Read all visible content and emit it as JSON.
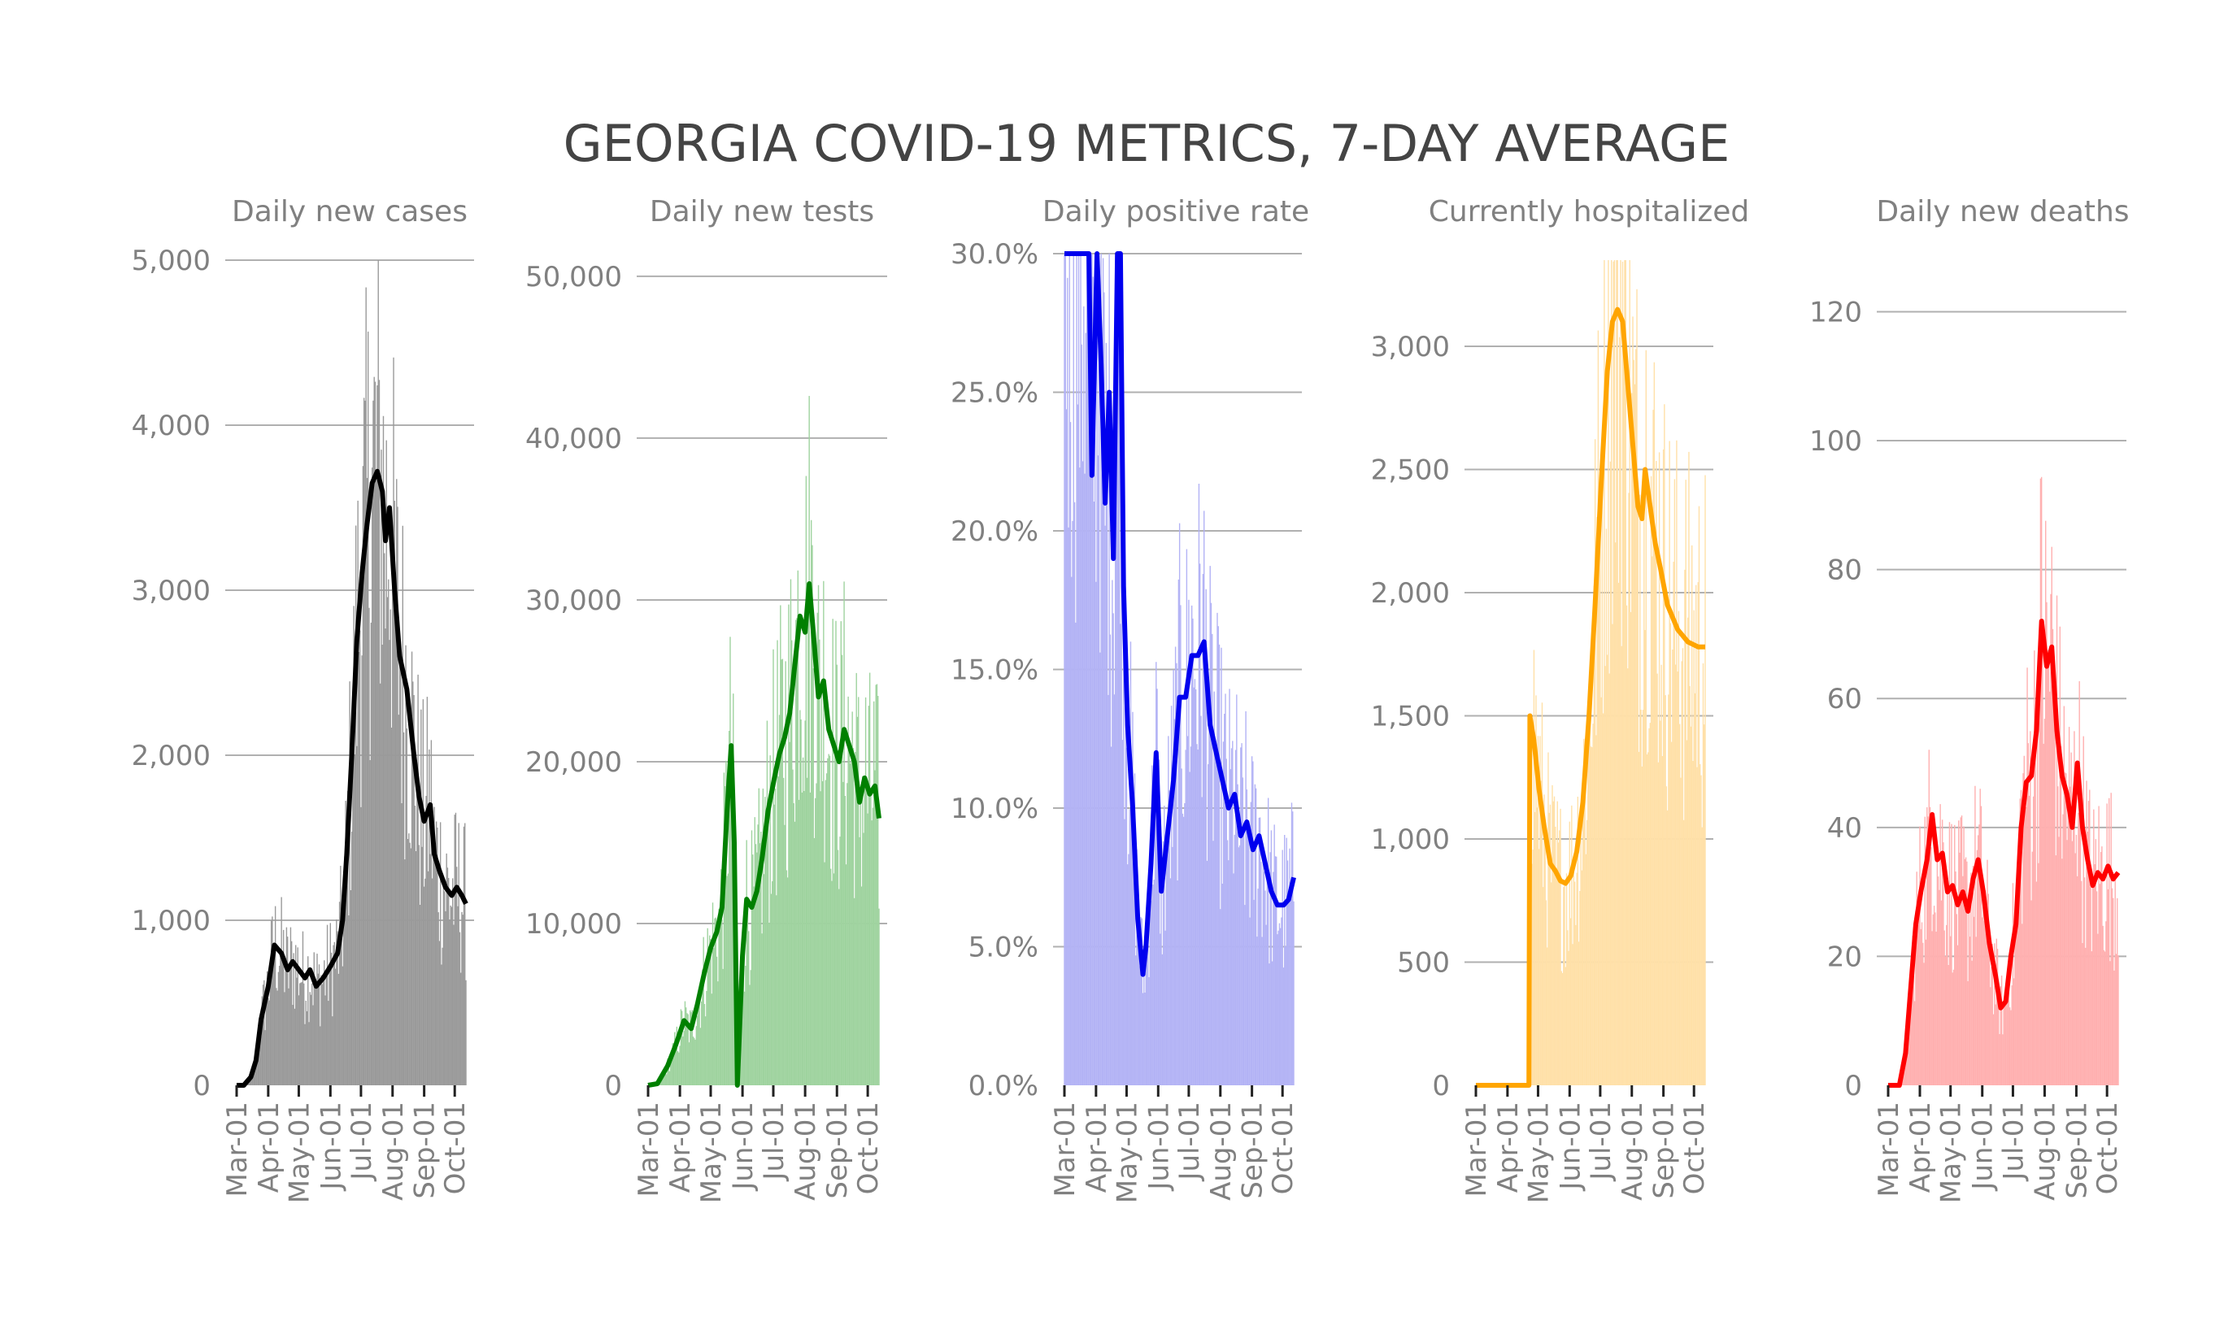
{
  "figure": {
    "title": "GEORGIA COVID-19 METRICS, 7-DAY AVERAGE"
  },
  "chart_data": [
    {
      "type": "line",
      "title": "Daily new cases",
      "color": "#000000",
      "bar_color": "#9a9a9a",
      "x_range": [
        "2020-03-01",
        "2020-10-12"
      ],
      "ylim": [
        0,
        5000
      ],
      "yticks": [
        0,
        1000,
        2000,
        3000,
        4000,
        5000
      ],
      "ytick_labels": [
        "0",
        "1,000",
        "2,000",
        "3,000",
        "4,000",
        "5,000"
      ],
      "xtick_labels": [
        "Mar-01",
        "Apr-01",
        "May-01",
        "Jun-01",
        "Jul-01",
        "Aug-01",
        "Sep-01",
        "Oct-01"
      ],
      "series": [
        {
          "values": [
            [
              "2020-03-01",
              0
            ],
            [
              "2020-03-08",
              0
            ],
            [
              "2020-03-15",
              50
            ],
            [
              "2020-03-20",
              150
            ],
            [
              "2020-03-25",
              400
            ],
            [
              "2020-04-01",
              600
            ],
            [
              "2020-04-07",
              850
            ],
            [
              "2020-04-14",
              800
            ],
            [
              "2020-04-20",
              700
            ],
            [
              "2020-04-25",
              750
            ],
            [
              "2020-05-01",
              700
            ],
            [
              "2020-05-07",
              650
            ],
            [
              "2020-05-12",
              700
            ],
            [
              "2020-05-18",
              600
            ],
            [
              "2020-05-25",
              650
            ],
            [
              "2020-06-01",
              720
            ],
            [
              "2020-06-08",
              800
            ],
            [
              "2020-06-13",
              1000
            ],
            [
              "2020-06-17",
              1400
            ],
            [
              "2020-06-22",
              2000
            ],
            [
              "2020-06-27",
              2700
            ],
            [
              "2020-07-02",
              3100
            ],
            [
              "2020-07-07",
              3400
            ],
            [
              "2020-07-12",
              3650
            ],
            [
              "2020-07-17",
              3720
            ],
            [
              "2020-07-22",
              3600
            ],
            [
              "2020-07-25",
              3300
            ],
            [
              "2020-07-29",
              3500
            ],
            [
              "2020-08-03",
              3000
            ],
            [
              "2020-08-08",
              2600
            ],
            [
              "2020-08-15",
              2400
            ],
            [
              "2020-08-22",
              2000
            ],
            [
              "2020-08-27",
              1750
            ],
            [
              "2020-09-01",
              1600
            ],
            [
              "2020-09-07",
              1700
            ],
            [
              "2020-09-11",
              1400
            ],
            [
              "2020-09-16",
              1300
            ],
            [
              "2020-09-22",
              1200
            ],
            [
              "2020-09-28",
              1150
            ],
            [
              "2020-10-03",
              1200
            ],
            [
              "2020-10-08",
              1150
            ],
            [
              "2020-10-12",
              1100
            ]
          ]
        }
      ]
    },
    {
      "type": "line",
      "title": "Daily new tests",
      "color": "#008000",
      "bar_color": "#9fd39f",
      "x_range": [
        "2020-03-01",
        "2020-10-12"
      ],
      "ylim": [
        0,
        51000
      ],
      "yticks": [
        0,
        10000,
        20000,
        30000,
        40000,
        50000
      ],
      "ytick_labels": [
        "0",
        "10,000",
        "20,000",
        "30,000",
        "40,000",
        "50,000"
      ],
      "xtick_labels": [
        "Mar-01",
        "Apr-01",
        "May-01",
        "Jun-01",
        "Jul-01",
        "Aug-01",
        "Sep-01",
        "Oct-01"
      ],
      "series": [
        {
          "values": [
            [
              "2020-03-01",
              0
            ],
            [
              "2020-03-10",
              100
            ],
            [
              "2020-03-20",
              1200
            ],
            [
              "2020-03-28",
              2500
            ],
            [
              "2020-04-05",
              4000
            ],
            [
              "2020-04-12",
              3500
            ],
            [
              "2020-04-18",
              5000
            ],
            [
              "2020-04-25",
              7000
            ],
            [
              "2020-05-01",
              8500
            ],
            [
              "2020-05-07",
              9500
            ],
            [
              "2020-05-12",
              11000
            ],
            [
              "2020-05-17",
              17000
            ],
            [
              "2020-05-21",
              21000
            ],
            [
              "2020-05-24",
              15000
            ],
            [
              "2020-05-27",
              0
            ],
            [
              "2020-06-01",
              8000
            ],
            [
              "2020-06-05",
              11500
            ],
            [
              "2020-06-10",
              11000
            ],
            [
              "2020-06-15",
              12000
            ],
            [
              "2020-06-20",
              14000
            ],
            [
              "2020-06-26",
              17000
            ],
            [
              "2020-07-02",
              19000
            ],
            [
              "2020-07-07",
              20500
            ],
            [
              "2020-07-12",
              21500
            ],
            [
              "2020-07-17",
              23000
            ],
            [
              "2020-07-22",
              26000
            ],
            [
              "2020-07-27",
              29000
            ],
            [
              "2020-08-01",
              28000
            ],
            [
              "2020-08-05",
              31000
            ],
            [
              "2020-08-09",
              28000
            ],
            [
              "2020-08-14",
              24000
            ],
            [
              "2020-08-19",
              25000
            ],
            [
              "2020-08-24",
              22000
            ],
            [
              "2020-08-29",
              21000
            ],
            [
              "2020-09-03",
              20000
            ],
            [
              "2020-09-08",
              22000
            ],
            [
              "2020-09-13",
              21000
            ],
            [
              "2020-09-18",
              20000
            ],
            [
              "2020-09-23",
              17500
            ],
            [
              "2020-09-28",
              19000
            ],
            [
              "2020-10-03",
              18000
            ],
            [
              "2020-10-08",
              18500
            ],
            [
              "2020-10-12",
              16500
            ]
          ]
        }
      ]
    },
    {
      "type": "line",
      "title": "Daily positive rate",
      "color": "#0000ee",
      "bar_color": "#b3b3f5",
      "x_range": [
        "2020-03-01",
        "2020-10-12"
      ],
      "ylim": [
        0,
        30
      ],
      "yticks": [
        0,
        5,
        10,
        15,
        20,
        25,
        30
      ],
      "ytick_labels": [
        "0.0%",
        "5.0%",
        "10.0%",
        "15.0%",
        "20.0%",
        "25.0%",
        "30.0%"
      ],
      "xtick_labels": [
        "Mar-01",
        "Apr-01",
        "May-01",
        "Jun-01",
        "Jul-01",
        "Aug-01",
        "Sep-01",
        "Oct-01"
      ],
      "series": [
        {
          "values": [
            [
              "2020-03-01",
              30
            ],
            [
              "2020-03-25",
              30
            ],
            [
              "2020-03-28",
              22
            ],
            [
              "2020-04-02",
              30
            ],
            [
              "2020-04-06",
              26
            ],
            [
              "2020-04-10",
              21
            ],
            [
              "2020-04-14",
              25
            ],
            [
              "2020-04-18",
              19
            ],
            [
              "2020-04-22",
              30
            ],
            [
              "2020-04-25",
              30
            ],
            [
              "2020-04-28",
              18
            ],
            [
              "2020-05-02",
              13
            ],
            [
              "2020-05-07",
              10
            ],
            [
              "2020-05-12",
              6
            ],
            [
              "2020-05-17",
              4
            ],
            [
              "2020-05-20",
              5
            ],
            [
              "2020-05-25",
              8
            ],
            [
              "2020-05-30",
              12
            ],
            [
              "2020-06-04",
              7
            ],
            [
              "2020-06-10",
              9
            ],
            [
              "2020-06-16",
              11
            ],
            [
              "2020-06-22",
              14
            ],
            [
              "2020-06-28",
              14
            ],
            [
              "2020-07-04",
              15.5
            ],
            [
              "2020-07-10",
              15.5
            ],
            [
              "2020-07-16",
              16
            ],
            [
              "2020-07-22",
              13
            ],
            [
              "2020-07-28",
              12
            ],
            [
              "2020-08-03",
              11
            ],
            [
              "2020-08-09",
              10
            ],
            [
              "2020-08-15",
              10.5
            ],
            [
              "2020-08-21",
              9
            ],
            [
              "2020-08-27",
              9.5
            ],
            [
              "2020-09-02",
              8.5
            ],
            [
              "2020-09-08",
              9
            ],
            [
              "2020-09-14",
              8
            ],
            [
              "2020-09-20",
              7
            ],
            [
              "2020-09-26",
              6.5
            ],
            [
              "2020-10-02",
              6.5
            ],
            [
              "2020-10-07",
              6.7
            ],
            [
              "2020-10-12",
              7.5
            ]
          ]
        }
      ]
    },
    {
      "type": "line",
      "title": "Currently hospitalized",
      "color": "#ffa500",
      "bar_color": "#ffe0a8",
      "x_range": [
        "2020-03-01",
        "2020-10-12"
      ],
      "ylim": [
        0,
        3350
      ],
      "yticks": [
        0,
        500,
        1000,
        1500,
        2000,
        2500,
        3000
      ],
      "ytick_labels": [
        "0",
        "500",
        "1,000",
        "1,500",
        "2,000",
        "2,500",
        "3,000"
      ],
      "xtick_labels": [
        "Mar-01",
        "Apr-01",
        "May-01",
        "Jun-01",
        "Jul-01",
        "Aug-01",
        "Sep-01",
        "Oct-01"
      ],
      "series": [
        {
          "values": [
            [
              "2020-03-01",
              0
            ],
            [
              "2020-04-22",
              0
            ],
            [
              "2020-04-23",
              1500
            ],
            [
              "2020-04-27",
              1400
            ],
            [
              "2020-05-02",
              1200
            ],
            [
              "2020-05-07",
              1050
            ],
            [
              "2020-05-13",
              900
            ],
            [
              "2020-05-18",
              870
            ],
            [
              "2020-05-23",
              830
            ],
            [
              "2020-05-28",
              820
            ],
            [
              "2020-06-02",
              850
            ],
            [
              "2020-06-08",
              950
            ],
            [
              "2020-06-14",
              1150
            ],
            [
              "2020-06-20",
              1500
            ],
            [
              "2020-06-26",
              1950
            ],
            [
              "2020-07-02",
              2450
            ],
            [
              "2020-07-08",
              2900
            ],
            [
              "2020-07-13",
              3100
            ],
            [
              "2020-07-18",
              3150
            ],
            [
              "2020-07-23",
              3100
            ],
            [
              "2020-07-28",
              2850
            ],
            [
              "2020-08-02",
              2600
            ],
            [
              "2020-08-07",
              2350
            ],
            [
              "2020-08-11",
              2300
            ],
            [
              "2020-08-14",
              2500
            ],
            [
              "2020-08-19",
              2350
            ],
            [
              "2020-08-24",
              2200
            ],
            [
              "2020-08-29",
              2100
            ],
            [
              "2020-09-05",
              1950
            ],
            [
              "2020-09-15",
              1850
            ],
            [
              "2020-09-25",
              1800
            ],
            [
              "2020-10-05",
              1780
            ],
            [
              "2020-10-12",
              1780
            ]
          ]
        }
      ]
    },
    {
      "type": "line",
      "title": "Daily new deaths",
      "color": "#ff0000",
      "bar_color": "#ffb0b0",
      "x_range": [
        "2020-03-01",
        "2020-10-12"
      ],
      "ylim": [
        0,
        128
      ],
      "yticks": [
        0,
        20,
        40,
        60,
        80,
        100,
        120
      ],
      "ytick_labels": [
        "0",
        "20",
        "40",
        "60",
        "80",
        "100",
        "120"
      ],
      "xtick_labels": [
        "Mar-01",
        "Apr-01",
        "May-01",
        "Jun-01",
        "Jul-01",
        "Aug-01",
        "Sep-01",
        "Oct-01"
      ],
      "series": [
        {
          "values": [
            [
              "2020-03-01",
              0
            ],
            [
              "2020-03-12",
              0
            ],
            [
              "2020-03-18",
              5
            ],
            [
              "2020-03-23",
              15
            ],
            [
              "2020-03-28",
              25
            ],
            [
              "2020-04-02",
              30
            ],
            [
              "2020-04-08",
              35
            ],
            [
              "2020-04-13",
              42
            ],
            [
              "2020-04-18",
              35
            ],
            [
              "2020-04-23",
              36
            ],
            [
              "2020-04-28",
              30
            ],
            [
              "2020-05-03",
              31
            ],
            [
              "2020-05-08",
              28
            ],
            [
              "2020-05-13",
              30
            ],
            [
              "2020-05-18",
              27
            ],
            [
              "2020-05-23",
              32
            ],
            [
              "2020-05-28",
              35
            ],
            [
              "2020-06-02",
              30
            ],
            [
              "2020-06-08",
              22
            ],
            [
              "2020-06-14",
              17
            ],
            [
              "2020-06-19",
              12
            ],
            [
              "2020-06-24",
              13
            ],
            [
              "2020-06-29",
              20
            ],
            [
              "2020-07-04",
              25
            ],
            [
              "2020-07-09",
              40
            ],
            [
              "2020-07-14",
              47
            ],
            [
              "2020-07-19",
              48
            ],
            [
              "2020-07-24",
              55
            ],
            [
              "2020-07-29",
              72
            ],
            [
              "2020-08-03",
              65
            ],
            [
              "2020-08-08",
              68
            ],
            [
              "2020-08-13",
              55
            ],
            [
              "2020-08-18",
              48
            ],
            [
              "2020-08-23",
              45
            ],
            [
              "2020-08-28",
              40
            ],
            [
              "2020-09-02",
              50
            ],
            [
              "2020-09-07",
              40
            ],
            [
              "2020-09-12",
              35
            ],
            [
              "2020-09-17",
              31
            ],
            [
              "2020-09-22",
              33
            ],
            [
              "2020-09-27",
              32
            ],
            [
              "2020-10-02",
              34
            ],
            [
              "2020-10-07",
              32
            ],
            [
              "2020-10-12",
              33
            ]
          ]
        }
      ]
    }
  ]
}
